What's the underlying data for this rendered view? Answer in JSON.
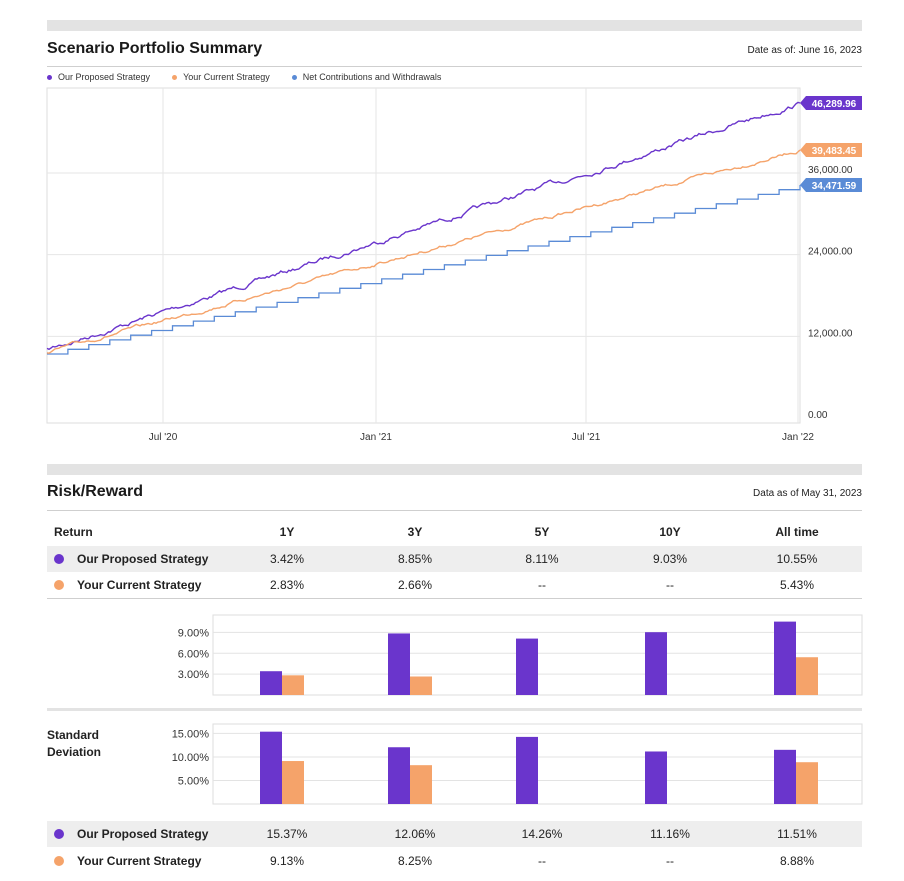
{
  "colors": {
    "proposed": "#6a35cc",
    "current": "#f5a36a",
    "net": "#5a8bd6",
    "bar_proposed": "#6a35cc",
    "bar_current": "#f5a36a"
  },
  "summary": {
    "title": "Scenario Portfolio Summary",
    "as_of": "Date as of: June 16, 2023"
  },
  "risk": {
    "title": "Risk/Reward",
    "as_of": "Data as of May 31, 2023",
    "std_label_1": "Standard",
    "std_label_2": "Deviation"
  },
  "returns_table": {
    "headers": [
      "Return",
      "1Y",
      "3Y",
      "5Y",
      "10Y",
      "All time"
    ],
    "rows": [
      {
        "name": "Our Proposed Strategy",
        "values": [
          "3.42%",
          "8.85%",
          "8.11%",
          "9.03%",
          "10.55%"
        ]
      },
      {
        "name": "Your Current Strategy",
        "values": [
          "2.83%",
          "2.66%",
          "--",
          "--",
          "5.43%"
        ]
      }
    ]
  },
  "std_table": {
    "rows": [
      {
        "name": "Our Proposed Strategy",
        "values": [
          "15.37%",
          "12.06%",
          "14.26%",
          "11.16%",
          "11.51%"
        ]
      },
      {
        "name": "Your Current Strategy",
        "values": [
          "9.13%",
          "8.25%",
          "--",
          "--",
          "8.88%"
        ]
      }
    ]
  },
  "chart_data": [
    {
      "type": "line",
      "title": "Scenario Portfolio Summary",
      "x_ticks": [
        "Jul '20",
        "Jan '21",
        "Jul '21",
        "Jan '22"
      ],
      "y_ticks": [
        "0.00",
        "12,000.00",
        "24,000.00",
        "36,000.00"
      ],
      "ylim": [
        0,
        50000
      ],
      "legend": [
        "Our Proposed Strategy",
        "Your Current Strategy",
        "Net Contributions and Withdrawals"
      ],
      "series": [
        {
          "name": "Our Proposed Strategy",
          "start": 10000,
          "end": 46289.96,
          "end_label": "46,289.96"
        },
        {
          "name": "Your Current Strategy",
          "start": 9800,
          "end": 39483.45,
          "end_label": "39,483.45"
        },
        {
          "name": "Net Contributions and Withdrawals",
          "start": 9500,
          "end": 34471.59,
          "end_label": "34,471.59"
        }
      ]
    },
    {
      "type": "bar",
      "title": "Return",
      "categories": [
        "1Y",
        "3Y",
        "5Y",
        "10Y",
        "All time"
      ],
      "y_ticks": [
        "3.00%",
        "6.00%",
        "9.00%"
      ],
      "ylim": [
        0,
        11.5
      ],
      "series": [
        {
          "name": "Our Proposed Strategy",
          "values": [
            3.42,
            8.85,
            8.11,
            9.03,
            10.55
          ]
        },
        {
          "name": "Your Current Strategy",
          "values": [
            2.83,
            2.66,
            null,
            null,
            5.43
          ]
        }
      ]
    },
    {
      "type": "bar",
      "title": "Standard Deviation",
      "categories": [
        "1Y",
        "3Y",
        "5Y",
        "10Y",
        "All time"
      ],
      "y_ticks": [
        "5.00%",
        "10.00%",
        "15.00%"
      ],
      "ylim": [
        0,
        17
      ],
      "series": [
        {
          "name": "Our Proposed Strategy",
          "values": [
            15.37,
            12.06,
            14.26,
            11.16,
            11.51
          ]
        },
        {
          "name": "Your Current Strategy",
          "values": [
            9.13,
            8.25,
            null,
            null,
            8.88
          ]
        }
      ]
    }
  ]
}
